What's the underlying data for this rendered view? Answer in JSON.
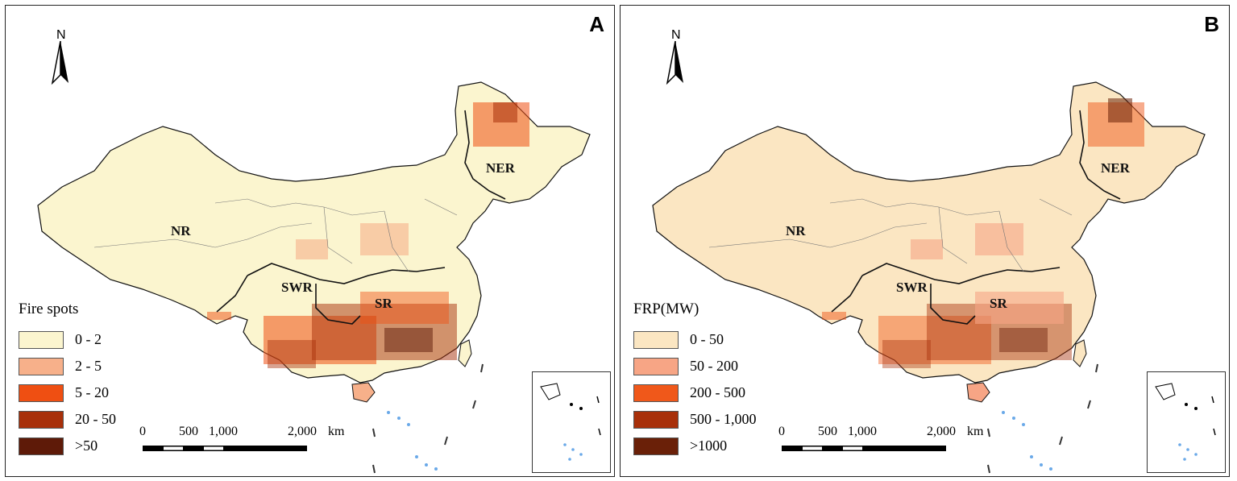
{
  "panels": [
    {
      "id": "A",
      "letter": "A",
      "north_label": "N",
      "land_color": "#fbf5cf",
      "legend": {
        "title": "Fire spots",
        "classes": [
          {
            "label": "0 - 2",
            "color": "#fbf5cf"
          },
          {
            "label": "2 - 5",
            "color": "#f7b08a"
          },
          {
            "label": "5 - 20",
            "color": "#ef4f12"
          },
          {
            "label": "20 - 50",
            "color": "#a8300a"
          },
          {
            "label": ">50",
            "color": "#5e1a08"
          }
        ]
      },
      "regions": {
        "ner": "NER",
        "nr": "NR",
        "swr": "SWR",
        "sr": "SR"
      },
      "scale": {
        "t0": "0",
        "t1": "500",
        "t2": "1,000",
        "t3": "2,000",
        "unit": "km"
      }
    },
    {
      "id": "B",
      "letter": "B",
      "north_label": "N",
      "land_color": "#fbe6c2",
      "legend": {
        "title": "FRP(MW)",
        "classes": [
          {
            "label": "0 - 50",
            "color": "#fbe6c2"
          },
          {
            "label": "50 - 200",
            "color": "#f7a585"
          },
          {
            "label": "200 - 500",
            "color": "#f0581a"
          },
          {
            "label": "500 - 1,000",
            "color": "#a8300a"
          },
          {
            "label": ">1000",
            "color": "#6a2008"
          }
        ]
      },
      "regions": {
        "ner": "NER",
        "nr": "NR",
        "swr": "SWR",
        "sr": "SR"
      },
      "scale": {
        "t0": "0",
        "t1": "500",
        "t2": "1,000",
        "t3": "2,000",
        "unit": "km"
      }
    }
  ]
}
